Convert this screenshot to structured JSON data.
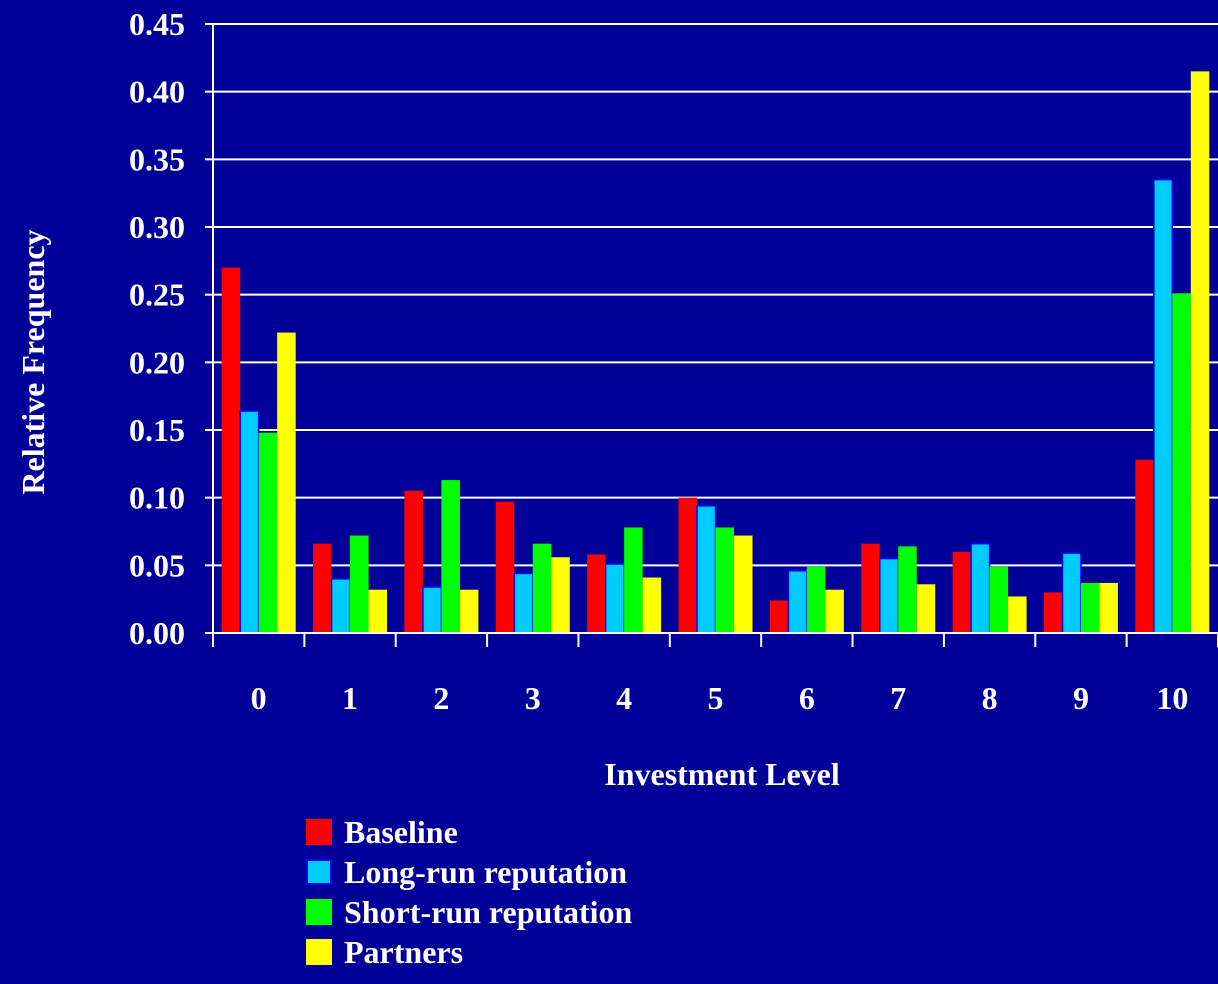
{
  "chart_data": {
    "type": "bar",
    "title": "",
    "xlabel": "Investment Level",
    "ylabel": "Relative Frequency",
    "ylim": [
      0,
      0.45
    ],
    "yticks": [
      "0.00",
      "0.05",
      "0.10",
      "0.15",
      "0.20",
      "0.25",
      "0.30",
      "0.35",
      "0.40",
      "0.45"
    ],
    "grid": true,
    "legend_position": "bottom",
    "categories": [
      "0",
      "1",
      "2",
      "3",
      "4",
      "5",
      "6",
      "7",
      "8",
      "9",
      "10"
    ],
    "series": [
      {
        "name": "Baseline",
        "color": "#ff0000",
        "values": [
          0.27,
          0.066,
          0.105,
          0.097,
          0.058,
          0.1,
          0.024,
          0.066,
          0.06,
          0.03,
          0.128
        ]
      },
      {
        "name": "Long-run reputation",
        "color": "#00ccff",
        "values": [
          0.164,
          0.04,
          0.034,
          0.044,
          0.051,
          0.094,
          0.046,
          0.055,
          0.066,
          0.059,
          0.335
        ]
      },
      {
        "name": "Short-run reputation",
        "color": "#00ff00",
        "values": [
          0.148,
          0.072,
          0.113,
          0.066,
          0.078,
          0.078,
          0.049,
          0.064,
          0.049,
          0.037,
          0.251
        ]
      },
      {
        "name": "Partners",
        "color": "#ffff00",
        "values": [
          0.222,
          0.032,
          0.032,
          0.056,
          0.041,
          0.072,
          0.032,
          0.036,
          0.027,
          0.037,
          0.415
        ]
      }
    ]
  }
}
